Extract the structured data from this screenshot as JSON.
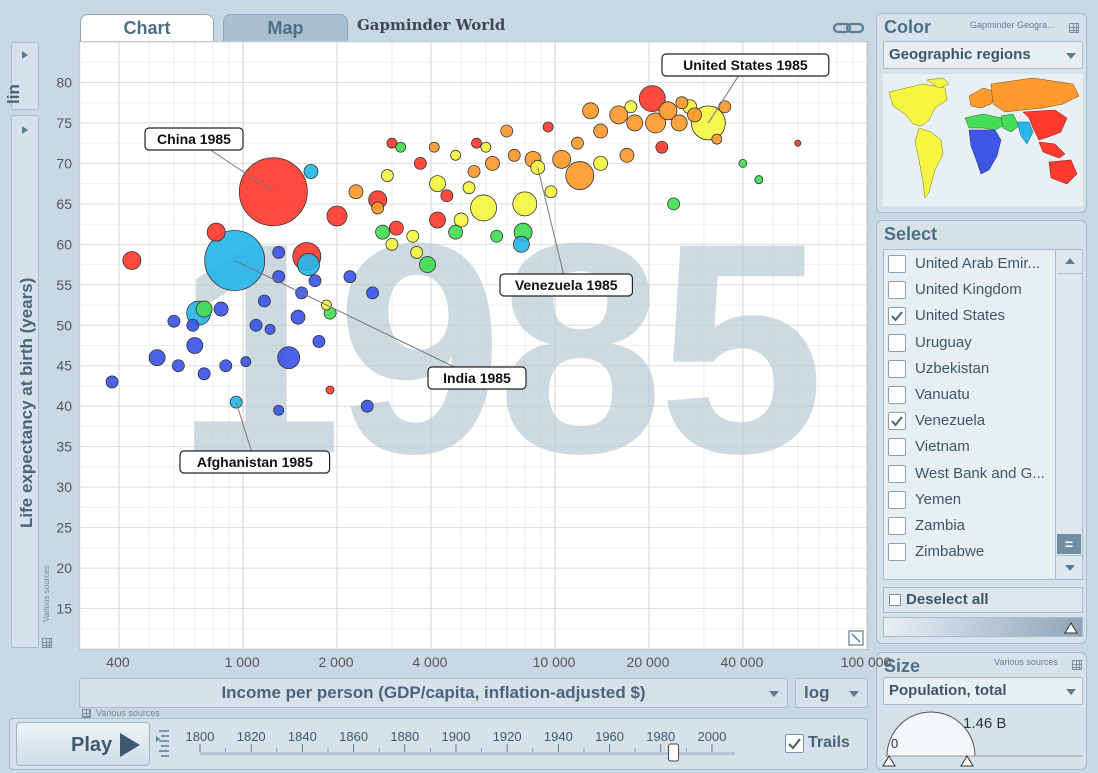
{
  "tabs": {
    "chart": "Chart",
    "map": "Map"
  },
  "app_title": "Gapminder World",
  "year_watermark": "1985",
  "y_axis": {
    "label": "Life expectancy at birth (years)",
    "scale": "lin",
    "sources": "Various sources"
  },
  "x_axis": {
    "label": "Income per person (GDP/capita, inflation-adjusted $)",
    "scale": "log",
    "sources": "Various sources"
  },
  "chart_data": {
    "type": "scatter",
    "x_scale": "log",
    "xlim": [
      300,
      100000
    ],
    "ylim": [
      10,
      85
    ],
    "x_ticks": [
      400,
      1000,
      2000,
      4000,
      10000,
      20000,
      40000,
      100000
    ],
    "x_tick_labels": [
      "400",
      "1 000",
      "2 000",
      "4 000",
      "10 000",
      "20 000",
      "40 000",
      "100 000"
    ],
    "y_ticks": [
      15,
      20,
      25,
      30,
      35,
      40,
      45,
      50,
      55,
      60,
      65,
      70,
      75,
      80
    ],
    "grid": true,
    "region_colors": {
      "asia": "#ff3b30",
      "africa": "#3d56e6",
      "south_asia": "#29b6e8",
      "americas": "#f5f542",
      "europe": "#ff9a2e",
      "middle_east": "#44dd55"
    },
    "labels": [
      {
        "text": "China 1985",
        "x": 1250,
        "y": 66.5
      },
      {
        "text": "United States 1985",
        "x": 31000,
        "y": 75
      },
      {
        "text": "India 1985",
        "x": 940,
        "y": 58
      },
      {
        "text": "Venezuela 1985",
        "x": 8800,
        "y": 69.5
      },
      {
        "text": "Afghanistan 1985",
        "x": 950,
        "y": 40.5
      }
    ],
    "points": [
      {
        "x": 1250,
        "y": 66.5,
        "s": 34,
        "r": "asia"
      },
      {
        "x": 940,
        "y": 58,
        "s": 30,
        "r": "south_asia"
      },
      {
        "x": 31000,
        "y": 75,
        "s": 17,
        "r": "americas"
      },
      {
        "x": 20500,
        "y": 78,
        "s": 13,
        "r": "asia"
      },
      {
        "x": 12000,
        "y": 68.5,
        "s": 14,
        "r": "europe"
      },
      {
        "x": 8800,
        "y": 69.5,
        "s": 7,
        "r": "americas"
      },
      {
        "x": 8000,
        "y": 65,
        "s": 12,
        "r": "americas"
      },
      {
        "x": 5900,
        "y": 64.5,
        "s": 13,
        "r": "americas"
      },
      {
        "x": 1600,
        "y": 58.5,
        "s": 14,
        "r": "asia"
      },
      {
        "x": 1620,
        "y": 57.5,
        "s": 11,
        "r": "south_asia"
      },
      {
        "x": 1400,
        "y": 46,
        "s": 11,
        "r": "africa"
      },
      {
        "x": 720,
        "y": 51.5,
        "s": 12,
        "r": "south_asia"
      },
      {
        "x": 440,
        "y": 58,
        "s": 9,
        "r": "asia"
      },
      {
        "x": 820,
        "y": 61.5,
        "s": 9,
        "r": "asia"
      },
      {
        "x": 950,
        "y": 40.5,
        "s": 6,
        "r": "south_asia"
      },
      {
        "x": 530,
        "y": 46,
        "s": 8,
        "r": "africa"
      },
      {
        "x": 380,
        "y": 43,
        "s": 6,
        "r": "africa"
      },
      {
        "x": 700,
        "y": 47.5,
        "s": 8,
        "r": "africa"
      },
      {
        "x": 750,
        "y": 44,
        "s": 6,
        "r": "africa"
      },
      {
        "x": 600,
        "y": 50.5,
        "s": 6,
        "r": "africa"
      },
      {
        "x": 850,
        "y": 52,
        "s": 7,
        "r": "africa"
      },
      {
        "x": 1100,
        "y": 50,
        "s": 6,
        "r": "africa"
      },
      {
        "x": 1300,
        "y": 56,
        "s": 6,
        "r": "africa"
      },
      {
        "x": 1750,
        "y": 48,
        "s": 6,
        "r": "africa"
      },
      {
        "x": 2200,
        "y": 56,
        "s": 6,
        "r": "africa"
      },
      {
        "x": 2600,
        "y": 54,
        "s": 6,
        "r": "africa"
      },
      {
        "x": 2500,
        "y": 40,
        "s": 6,
        "r": "africa"
      },
      {
        "x": 1300,
        "y": 39.5,
        "s": 5,
        "r": "africa"
      },
      {
        "x": 1500,
        "y": 51,
        "s": 7,
        "r": "africa"
      },
      {
        "x": 1300,
        "y": 59,
        "s": 6,
        "r": "africa"
      },
      {
        "x": 7800,
        "y": 60,
        "s": 8,
        "r": "south_asia"
      },
      {
        "x": 7900,
        "y": 61.5,
        "s": 9,
        "r": "middle_east"
      },
      {
        "x": 1650,
        "y": 69,
        "s": 7,
        "r": "south_asia"
      },
      {
        "x": 2000,
        "y": 63.5,
        "s": 10,
        "r": "asia"
      },
      {
        "x": 2700,
        "y": 65.5,
        "s": 9,
        "r": "asia"
      },
      {
        "x": 3100,
        "y": 62,
        "s": 7,
        "r": "asia"
      },
      {
        "x": 4200,
        "y": 63,
        "s": 8,
        "r": "asia"
      },
      {
        "x": 4200,
        "y": 67.5,
        "s": 8,
        "r": "americas"
      },
      {
        "x": 5000,
        "y": 63,
        "s": 7,
        "r": "americas"
      },
      {
        "x": 5300,
        "y": 67,
        "s": 6,
        "r": "americas"
      },
      {
        "x": 3000,
        "y": 60,
        "s": 6,
        "r": "americas"
      },
      {
        "x": 3500,
        "y": 61,
        "s": 6,
        "r": "americas"
      },
      {
        "x": 2800,
        "y": 61.5,
        "s": 7,
        "r": "middle_east"
      },
      {
        "x": 3900,
        "y": 57.5,
        "s": 8,
        "r": "middle_east"
      },
      {
        "x": 4800,
        "y": 61.5,
        "s": 7,
        "r": "middle_east"
      },
      {
        "x": 6500,
        "y": 61,
        "s": 6,
        "r": "middle_east"
      },
      {
        "x": 3600,
        "y": 59,
        "s": 6,
        "r": "americas"
      },
      {
        "x": 4500,
        "y": 66,
        "s": 6,
        "r": "asia"
      },
      {
        "x": 5500,
        "y": 69,
        "s": 6,
        "r": "europe"
      },
      {
        "x": 6300,
        "y": 70,
        "s": 7,
        "r": "europe"
      },
      {
        "x": 7400,
        "y": 71,
        "s": 6,
        "r": "europe"
      },
      {
        "x": 8500,
        "y": 70.5,
        "s": 8,
        "r": "europe"
      },
      {
        "x": 10500,
        "y": 70.5,
        "s": 9,
        "r": "europe"
      },
      {
        "x": 11800,
        "y": 72.5,
        "s": 6,
        "r": "europe"
      },
      {
        "x": 14000,
        "y": 74,
        "s": 7,
        "r": "europe"
      },
      {
        "x": 16000,
        "y": 76,
        "s": 9,
        "r": "europe"
      },
      {
        "x": 18000,
        "y": 75,
        "s": 8,
        "r": "europe"
      },
      {
        "x": 21000,
        "y": 75,
        "s": 10,
        "r": "europe"
      },
      {
        "x": 23000,
        "y": 76.5,
        "s": 9,
        "r": "europe"
      },
      {
        "x": 25000,
        "y": 75,
        "s": 8,
        "r": "europe"
      },
      {
        "x": 27000,
        "y": 77,
        "s": 7,
        "r": "americas"
      },
      {
        "x": 17500,
        "y": 77,
        "s": 6,
        "r": "americas"
      },
      {
        "x": 13000,
        "y": 76.5,
        "s": 8,
        "r": "europe"
      },
      {
        "x": 22000,
        "y": 72,
        "s": 6,
        "r": "asia"
      },
      {
        "x": 3700,
        "y": 70,
        "s": 6,
        "r": "asia"
      },
      {
        "x": 7000,
        "y": 74,
        "s": 6,
        "r": "europe"
      },
      {
        "x": 3000,
        "y": 72.5,
        "s": 5,
        "r": "asia"
      },
      {
        "x": 9500,
        "y": 74.5,
        "s": 5,
        "r": "asia"
      },
      {
        "x": 14000,
        "y": 70,
        "s": 7,
        "r": "americas"
      },
      {
        "x": 17000,
        "y": 71,
        "s": 7,
        "r": "europe"
      },
      {
        "x": 40000,
        "y": 70,
        "s": 4,
        "r": "middle_east"
      },
      {
        "x": 45000,
        "y": 68,
        "s": 4,
        "r": "middle_east"
      },
      {
        "x": 24000,
        "y": 65,
        "s": 6,
        "r": "middle_east"
      },
      {
        "x": 60000,
        "y": 72.5,
        "s": 3,
        "r": "asia"
      },
      {
        "x": 6000,
        "y": 72,
        "s": 5,
        "r": "americas"
      },
      {
        "x": 4800,
        "y": 71,
        "s": 5,
        "r": "americas"
      },
      {
        "x": 2900,
        "y": 68.5,
        "s": 6,
        "r": "americas"
      },
      {
        "x": 2700,
        "y": 64.5,
        "s": 6,
        "r": "europe"
      },
      {
        "x": 1850,
        "y": 52.5,
        "s": 5,
        "r": "americas"
      },
      {
        "x": 1900,
        "y": 51.5,
        "s": 6,
        "r": "middle_east"
      },
      {
        "x": 750,
        "y": 52,
        "s": 8,
        "r": "middle_east"
      },
      {
        "x": 690,
        "y": 50,
        "s": 6,
        "r": "africa"
      },
      {
        "x": 880,
        "y": 45,
        "s": 6,
        "r": "africa"
      },
      {
        "x": 1020,
        "y": 45.5,
        "s": 5,
        "r": "africa"
      },
      {
        "x": 1220,
        "y": 49.5,
        "s": 5,
        "r": "africa"
      },
      {
        "x": 1900,
        "y": 42,
        "s": 4,
        "r": "asia"
      },
      {
        "x": 1540,
        "y": 54,
        "s": 6,
        "r": "africa"
      },
      {
        "x": 1700,
        "y": 55.5,
        "s": 6,
        "r": "africa"
      },
      {
        "x": 1170,
        "y": 53,
        "s": 6,
        "r": "africa"
      },
      {
        "x": 620,
        "y": 45,
        "s": 6,
        "r": "africa"
      },
      {
        "x": 2300,
        "y": 66.5,
        "s": 7,
        "r": "europe"
      },
      {
        "x": 9700,
        "y": 66.5,
        "s": 6,
        "r": "americas"
      },
      {
        "x": 5600,
        "y": 72.5,
        "s": 5,
        "r": "asia"
      },
      {
        "x": 3200,
        "y": 72,
        "s": 5,
        "r": "middle_east"
      },
      {
        "x": 4100,
        "y": 72,
        "s": 5,
        "r": "europe"
      },
      {
        "x": 35000,
        "y": 77,
        "s": 6,
        "r": "europe"
      },
      {
        "x": 33000,
        "y": 73,
        "s": 5,
        "r": "europe"
      },
      {
        "x": 28000,
        "y": 76,
        "s": 7,
        "r": "europe"
      },
      {
        "x": 25500,
        "y": 77.5,
        "s": 6,
        "r": "europe"
      }
    ]
  },
  "play": {
    "label": "Play"
  },
  "timeline": {
    "ticks": [
      "1800",
      "1820",
      "1840",
      "1860",
      "1880",
      "1900",
      "1920",
      "1940",
      "1960",
      "1980",
      "2000"
    ],
    "year_start": 1800,
    "year_end": 2009,
    "current_year": 1985
  },
  "trails": {
    "label": "Trails",
    "checked": true
  },
  "color_panel": {
    "title": "Color",
    "source": "Gapminder Geogra...",
    "selected": "Geographic regions"
  },
  "select_panel": {
    "title": "Select",
    "countries": [
      {
        "name": "United Arab Emir...",
        "checked": false
      },
      {
        "name": "United Kingdom",
        "checked": false
      },
      {
        "name": "United States",
        "checked": true
      },
      {
        "name": "Uruguay",
        "checked": false
      },
      {
        "name": "Uzbekistan",
        "checked": false
      },
      {
        "name": "Vanuatu",
        "checked": false
      },
      {
        "name": "Venezuela",
        "checked": true
      },
      {
        "name": "Vietnam",
        "checked": false
      },
      {
        "name": "West Bank and G...",
        "checked": false
      },
      {
        "name": "Yemen",
        "checked": false
      },
      {
        "name": "Zambia",
        "checked": false
      },
      {
        "name": "Zimbabwe",
        "checked": false
      }
    ],
    "deselect_label": "Deselect all"
  },
  "size_panel": {
    "title": "Size",
    "source": "Various sources",
    "selected": "Population, total",
    "min_label": "0",
    "max_label": "1.46 B"
  }
}
